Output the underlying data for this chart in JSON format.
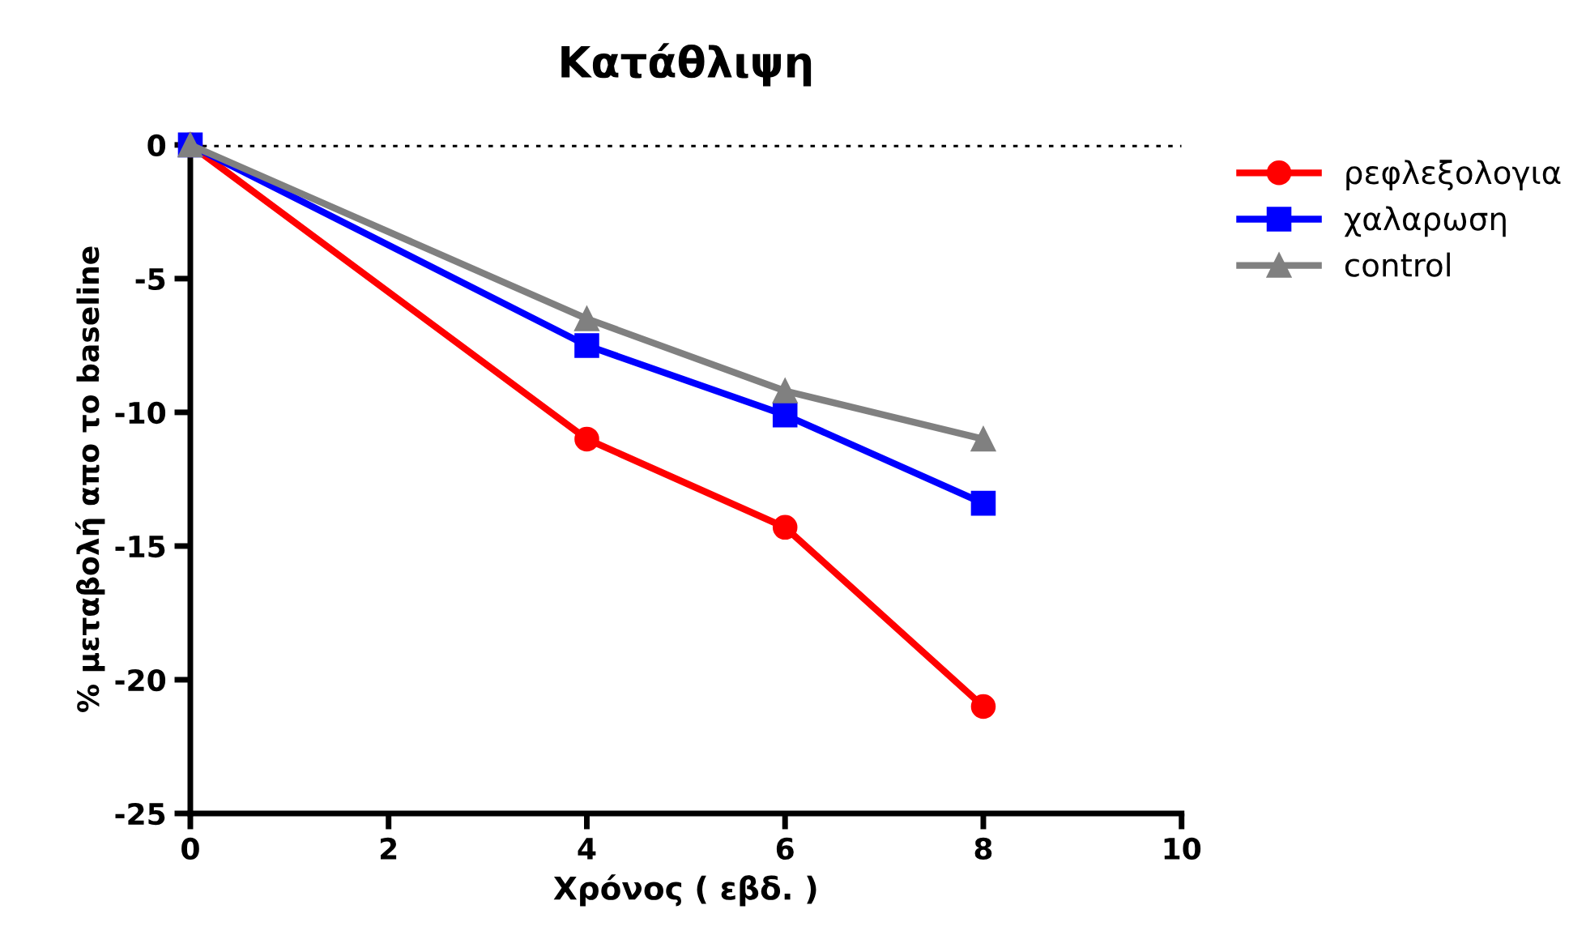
{
  "chart_data": {
    "type": "line",
    "title": "Κατάθλιψη",
    "xlabel": "Χρόνος ( εβδ. )",
    "ylabel": "% μεταβολή απο το baseline",
    "x": [
      0,
      4,
      6,
      8
    ],
    "series": [
      {
        "name": "ρεφλεξολογια",
        "color": "#ff0000",
        "marker": "circle",
        "values": [
          0,
          -11,
          -14.3,
          -21
        ]
      },
      {
        "name": "χαλαρωση",
        "color": "#0000ff",
        "marker": "square",
        "values": [
          0,
          -7.5,
          -10.1,
          -13.4
        ]
      },
      {
        "name": "control",
        "color": "#808080",
        "marker": "triangle",
        "values": [
          0,
          -6.5,
          -9.2,
          -11
        ]
      }
    ],
    "xlim": [
      0,
      10
    ],
    "xticks": [
      0,
      2,
      4,
      6,
      8,
      10
    ],
    "ylim": [
      -25,
      0
    ],
    "yticks": [
      -25,
      -20,
      -15,
      -10,
      -5,
      0
    ],
    "ref_lines": [
      {
        "axis": "y",
        "value": 0,
        "color": "#000000",
        "line_style": "dotted"
      }
    ],
    "grid": false,
    "legend": "right",
    "line_style": "solid"
  }
}
